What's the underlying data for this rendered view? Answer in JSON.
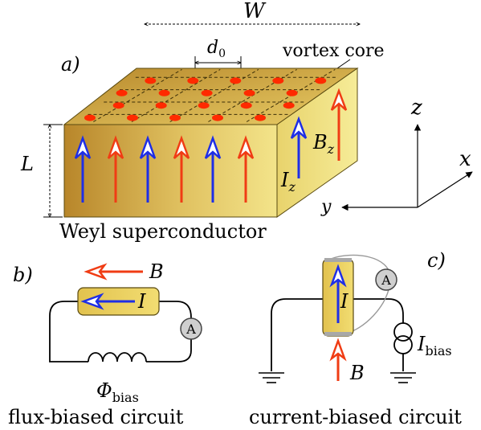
{
  "panel_a": {
    "tag": "a)",
    "width_label": "W",
    "spacing_label": "d",
    "spacing_sub": "0",
    "vortex_label": "vortex core",
    "thickness_label": "L",
    "material_label": "Weyl superconductor",
    "current_label": "I",
    "current_sub": "z",
    "field_label": "B",
    "field_sub": "z",
    "axis_z": "z",
    "axis_x": "x",
    "axis_y": "y"
  },
  "panel_b": {
    "tag": "b)",
    "field_label": "B",
    "current_label": "I",
    "ammeter_label": "A",
    "flux_label": "Φ",
    "flux_sub": "bias",
    "caption": "flux-biased circuit"
  },
  "panel_c": {
    "tag": "c)",
    "current_label": "I",
    "ammeter_label": "A",
    "bias_label": "I",
    "bias_sub": "bias",
    "field_label": "B",
    "caption": "current-biased circuit"
  },
  "colors": {
    "red": "#f03c14",
    "blue": "#1e2ee6",
    "gold": "#e6c95a",
    "vortex": "#ff2a00"
  }
}
